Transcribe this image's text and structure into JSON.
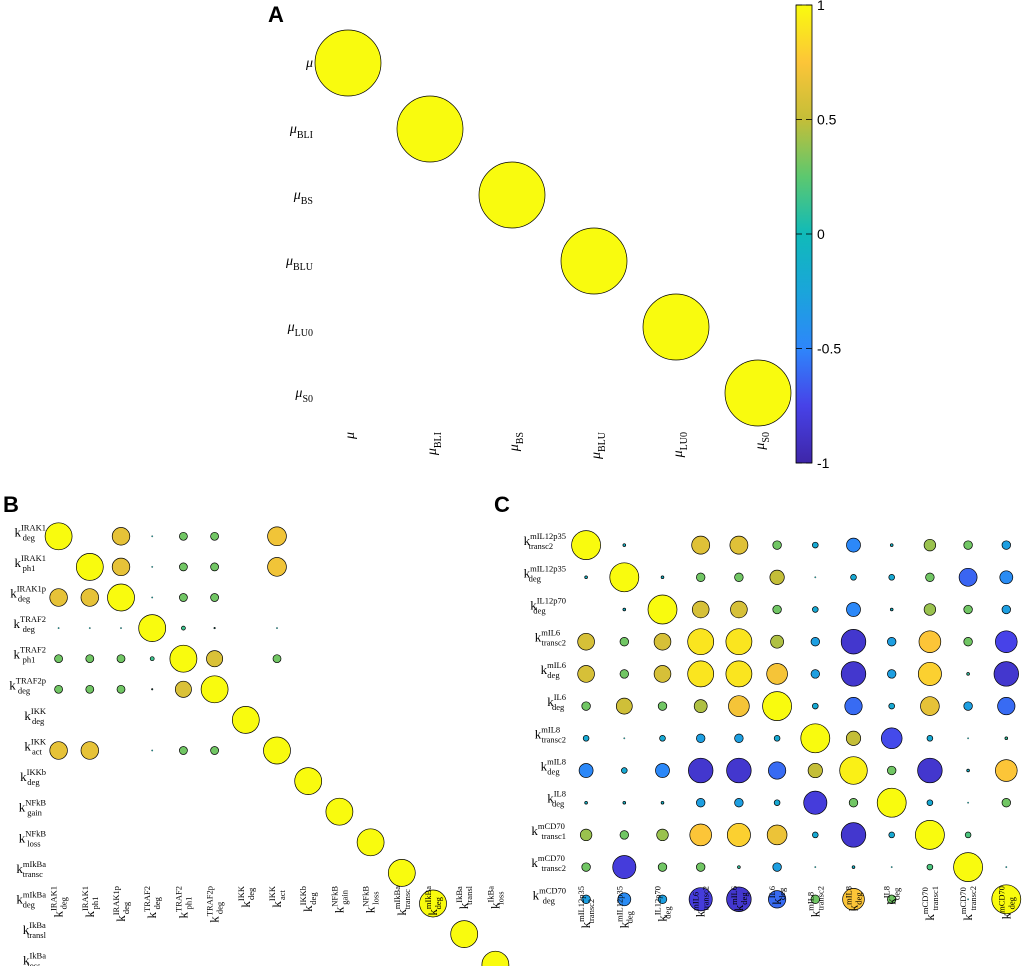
{
  "chart_data": [
    {
      "type": "correlation-bubble",
      "panel": "A",
      "labels": [
        {
          "main": "μ",
          "sub": "",
          "sup": ""
        },
        {
          "main": "μ",
          "sub": "BLI",
          "sup": ""
        },
        {
          "main": "μ",
          "sub": "BS",
          "sup": ""
        },
        {
          "main": "μ",
          "sub": "BLU",
          "sup": ""
        },
        {
          "main": "μ",
          "sub": "LU0",
          "sup": ""
        },
        {
          "main": "μ",
          "sub": "S0",
          "sup": ""
        }
      ],
      "values": [
        [
          1,
          null,
          null,
          null,
          null,
          null
        ],
        [
          null,
          1,
          null,
          null,
          null,
          null
        ],
        [
          null,
          null,
          1,
          null,
          null,
          null
        ],
        [
          null,
          null,
          null,
          1,
          null,
          null
        ],
        [
          null,
          null,
          null,
          null,
          1,
          null
        ],
        [
          null,
          null,
          null,
          null,
          null,
          1
        ]
      ],
      "colorbar": {
        "min": -1,
        "max": 1,
        "ticks": [
          "1",
          "0.5",
          "0",
          "-0.5",
          "-1"
        ],
        "colormap": "parula"
      }
    },
    {
      "type": "correlation-bubble",
      "panel": "B",
      "labels": [
        {
          "main": "k",
          "sub": "deg",
          "sup": "IRAK1"
        },
        {
          "main": "k",
          "sub": "ph1",
          "sup": "IRAK1"
        },
        {
          "main": "k",
          "sub": "deg",
          "sup": "IRAK1p"
        },
        {
          "main": "k",
          "sub": "deg",
          "sup": "TRAF2"
        },
        {
          "main": "k",
          "sub": "ph1",
          "sup": "TRAF2"
        },
        {
          "main": "k",
          "sub": "deg",
          "sup": "TRAF2p"
        },
        {
          "main": "k",
          "sub": "deg",
          "sup": "IKK"
        },
        {
          "main": "k",
          "sub": "act",
          "sup": "IKK"
        },
        {
          "main": "k",
          "sub": "deg",
          "sup": "IKKb"
        },
        {
          "main": "k",
          "sub": "gain",
          "sup": "NFkB"
        },
        {
          "main": "k",
          "sub": "loss",
          "sup": "NFkB"
        },
        {
          "main": "k",
          "sub": "transc",
          "sup": "mIkBa"
        },
        {
          "main": "k",
          "sub": "deg",
          "sup": "mIkBa"
        },
        {
          "main": "k",
          "sub": "transl",
          "sup": "IkBa"
        },
        {
          "main": "k",
          "sub": "loss",
          "sup": "IkBa"
        }
      ],
      "values": [
        [
          1,
          null,
          0.65,
          0.0,
          0.3,
          0.3,
          null,
          0.7,
          null,
          null,
          null,
          null,
          null,
          null,
          null
        ],
        [
          null,
          1,
          0.65,
          0.0,
          0.3,
          0.3,
          null,
          0.7,
          null,
          null,
          null,
          null,
          null,
          null,
          null
        ],
        [
          0.65,
          0.65,
          1,
          0.0,
          0.3,
          0.3,
          null,
          null,
          null,
          null,
          null,
          null,
          null,
          null,
          null
        ],
        [
          0.0,
          0.0,
          0.0,
          1,
          0.15,
          0.05,
          null,
          0.0,
          null,
          null,
          null,
          null,
          null,
          null,
          null
        ],
        [
          0.3,
          0.3,
          0.3,
          0.15,
          1,
          0.6,
          null,
          0.3,
          null,
          null,
          null,
          null,
          null,
          null,
          null
        ],
        [
          0.3,
          0.3,
          0.3,
          0.05,
          0.6,
          1,
          null,
          null,
          null,
          null,
          null,
          null,
          null,
          null,
          null
        ],
        [
          null,
          null,
          null,
          null,
          null,
          null,
          1,
          null,
          null,
          null,
          null,
          null,
          null,
          null,
          null
        ],
        [
          0.65,
          0.65,
          null,
          0.0,
          0.3,
          0.3,
          null,
          1,
          null,
          null,
          null,
          null,
          null,
          null,
          null
        ],
        [
          null,
          null,
          null,
          null,
          null,
          null,
          null,
          null,
          1,
          null,
          null,
          null,
          null,
          null,
          null
        ],
        [
          null,
          null,
          null,
          null,
          null,
          null,
          null,
          null,
          null,
          1,
          null,
          null,
          null,
          null,
          null
        ],
        [
          null,
          null,
          null,
          null,
          null,
          null,
          null,
          null,
          null,
          null,
          1,
          null,
          null,
          null,
          null
        ],
        [
          null,
          null,
          null,
          null,
          null,
          null,
          null,
          null,
          null,
          null,
          null,
          1,
          null,
          null,
          null
        ],
        [
          null,
          null,
          null,
          null,
          null,
          null,
          null,
          null,
          null,
          null,
          null,
          null,
          1,
          null,
          null
        ],
        [
          null,
          null,
          null,
          null,
          null,
          null,
          null,
          null,
          null,
          null,
          null,
          null,
          null,
          1,
          null
        ],
        [
          null,
          null,
          null,
          null,
          null,
          null,
          null,
          null,
          null,
          null,
          null,
          null,
          null,
          null,
          1
        ]
      ]
    },
    {
      "type": "correlation-bubble",
      "panel": "C",
      "labels": [
        {
          "main": "k",
          "sub": "transc2",
          "sup": "mIL12p35"
        },
        {
          "main": "k",
          "sub": "deg",
          "sup": "mIL12p35"
        },
        {
          "main": "k",
          "sub": "deg",
          "sup": "IL12p70"
        },
        {
          "main": "k",
          "sub": "transc2",
          "sup": "mIL6"
        },
        {
          "main": "k",
          "sub": "deg",
          "sup": "mIL6"
        },
        {
          "main": "k",
          "sub": "deg",
          "sup": "IL6"
        },
        {
          "main": "k",
          "sub": "transc2",
          "sup": "mIL8"
        },
        {
          "main": "k",
          "sub": "deg",
          "sup": "mIL8"
        },
        {
          "main": "k",
          "sub": "deg",
          "sup": "IL8"
        },
        {
          "main": "k",
          "sub": "transc1",
          "sup": "mCD70"
        },
        {
          "main": "k",
          "sub": "transc2",
          "sup": "mCD70"
        },
        {
          "main": "k",
          "sub": "deg",
          "sup": "mCD70"
        }
      ],
      "values": [
        [
          1,
          -0.1,
          null,
          0.62,
          0.62,
          0.3,
          -0.2,
          -0.48,
          -0.1,
          0.4,
          0.3,
          -0.3
        ],
        [
          -0.1,
          1,
          -0.1,
          0.3,
          0.3,
          0.5,
          0.0,
          -0.2,
          -0.2,
          0.3,
          -0.62,
          -0.45
        ],
        [
          null,
          -0.1,
          1,
          0.58,
          0.58,
          0.3,
          -0.2,
          -0.48,
          -0.1,
          0.4,
          0.3,
          -0.3
        ],
        [
          0.58,
          0.3,
          0.58,
          0.9,
          0.9,
          0.45,
          -0.3,
          -0.85,
          -0.3,
          0.75,
          0.3,
          -0.75
        ],
        [
          0.58,
          0.3,
          0.58,
          0.9,
          0.9,
          0.72,
          -0.3,
          -0.85,
          -0.3,
          0.8,
          0.1,
          -0.85
        ],
        [
          0.3,
          0.55,
          0.3,
          0.45,
          0.72,
          1,
          -0.2,
          -0.6,
          -0.2,
          0.65,
          -0.3,
          -0.6
        ],
        [
          -0.2,
          0.0,
          -0.2,
          -0.3,
          -0.3,
          -0.2,
          1,
          0.5,
          -0.72,
          -0.2,
          0.0,
          0.1
        ],
        [
          -0.48,
          -0.2,
          -0.48,
          -0.85,
          -0.85,
          -0.6,
          0.5,
          0.95,
          0.3,
          -0.85,
          -0.1,
          0.75
        ],
        [
          -0.1,
          -0.1,
          -0.1,
          -0.3,
          -0.3,
          -0.2,
          -0.8,
          0.3,
          1,
          -0.2,
          0.0,
          0.3
        ],
        [
          0.4,
          0.3,
          0.4,
          0.75,
          0.8,
          0.68,
          -0.2,
          -0.85,
          -0.2,
          1,
          0.2,
          null
        ],
        [
          0.3,
          -0.8,
          0.3,
          0.3,
          0.1,
          -0.3,
          0.0,
          -0.1,
          0.0,
          0.2,
          1,
          0.0
        ],
        [
          -0.3,
          -0.45,
          -0.3,
          -0.8,
          -0.85,
          -0.6,
          0.3,
          0.75,
          0.3,
          null,
          0.0,
          1
        ]
      ]
    }
  ]
}
